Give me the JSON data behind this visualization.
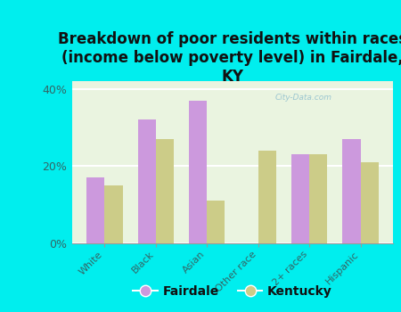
{
  "title": "Breakdown of poor residents within races\n(income below poverty level) in Fairdale,\nKY",
  "categories": [
    "White",
    "Black",
    "Asian",
    "Other race",
    "2+ races",
    "Hispanic"
  ],
  "fairdale_values": [
    17.0,
    32.0,
    37.0,
    0.0,
    23.0,
    27.0
  ],
  "kentucky_values": [
    15.0,
    27.0,
    11.0,
    24.0,
    23.0,
    21.0
  ],
  "fairdale_color": "#cc99dd",
  "kentucky_color": "#cccc88",
  "background_outer": "#00eeee",
  "background_plot_top": "#e8f5e0",
  "background_plot_bottom": "#f5f5e0",
  "ylim": [
    0,
    42
  ],
  "yticks": [
    0,
    20,
    40
  ],
  "ytick_labels": [
    "0%",
    "20%",
    "40%"
  ],
  "bar_width": 0.35,
  "title_fontsize": 12,
  "legend_labels": [
    "Fairdale",
    "Kentucky"
  ],
  "watermark": "City-Data.com",
  "grid_color": "#ffffff",
  "grid_linewidth": 1.5,
  "axis_label_color": "#336666"
}
